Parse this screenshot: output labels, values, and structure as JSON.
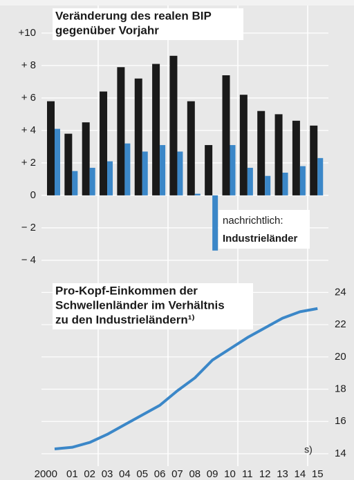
{
  "chart_data": [
    {
      "type": "bar",
      "title": [
        "Veränderung des realen BIP",
        "gegenüber Vorjahr"
      ],
      "categories": [
        "2000",
        "01",
        "02",
        "03",
        "04",
        "05",
        "06",
        "07",
        "08",
        "09",
        "10",
        "11",
        "12",
        "13",
        "14",
        "15"
      ],
      "series": [
        {
          "color": "#1a1a1a",
          "values": [
            5.8,
            3.8,
            4.5,
            6.4,
            7.9,
            7.2,
            8.1,
            8.6,
            5.8,
            3.1,
            7.4,
            6.2,
            5.2,
            5.0,
            4.6,
            4.3
          ]
        },
        {
          "name": "Industrieländer",
          "color": "#3b87c8",
          "values": [
            4.1,
            1.5,
            1.7,
            2.1,
            3.2,
            2.7,
            3.1,
            2.7,
            0.1,
            -3.4,
            3.1,
            1.7,
            1.2,
            1.4,
            1.8,
            2.3
          ]
        }
      ],
      "legend_note": "nachrichtlich:",
      "ylim": [
        -4.6,
        11.4
      ],
      "yticks": [
        {
          "value": 10,
          "label": "+10"
        },
        {
          "value": 8,
          "label": "+ 8"
        },
        {
          "value": 6,
          "label": "+ 6"
        },
        {
          "value": 4,
          "label": "+ 4"
        },
        {
          "value": 2,
          "label": "+ 2"
        },
        0,
        {
          "value": -2,
          "label": "− 2"
        },
        {
          "value": -4,
          "label": "− 4"
        }
      ],
      "grid": true
    },
    {
      "type": "line",
      "title": [
        "Pro-Kopf-Einkommen der",
        "Schwellenländer im Verhältnis",
        "zu den Industrieländern¹⁾"
      ],
      "series": [
        {
          "color": "#3b87c8",
          "axis": "y2",
          "values": [
            14.3,
            14.4,
            14.7,
            15.2,
            15.8,
            16.4,
            17.0,
            17.9,
            18.7,
            19.8,
            20.5,
            21.2,
            21.8,
            22.4,
            22.8,
            23.0
          ]
        }
      ],
      "annotation": "s)",
      "y2lim": [
        13.4,
        25
      ],
      "y2ticks": [
        14,
        16,
        18,
        20,
        22,
        24
      ],
      "grid": true
    }
  ]
}
